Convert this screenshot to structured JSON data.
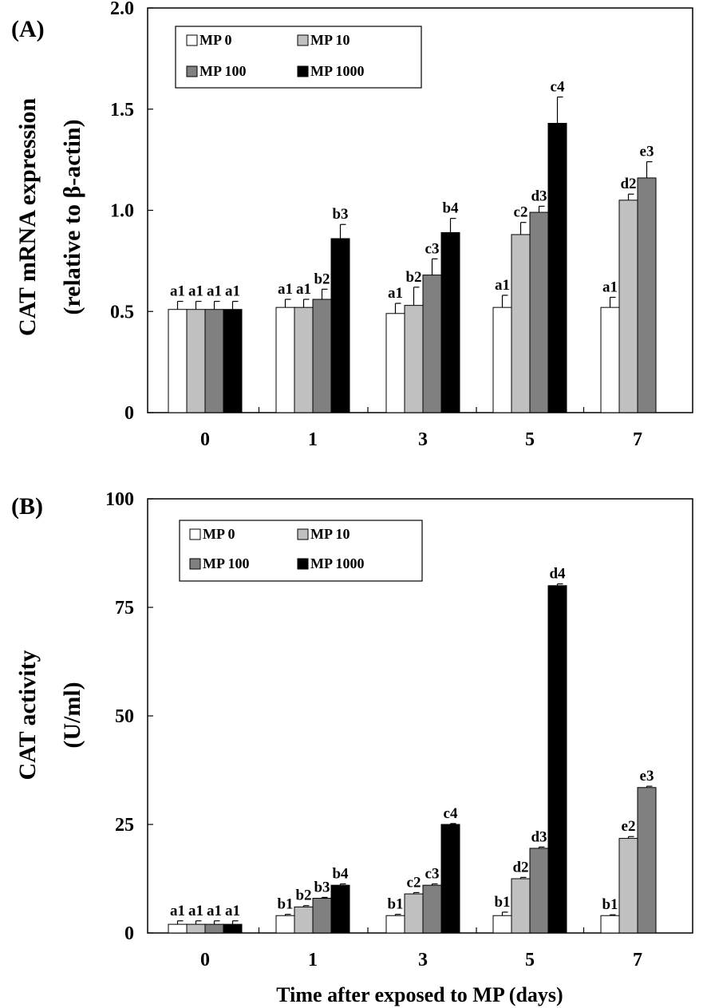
{
  "figure": {
    "xlabel_shared": "Time after exposed to MP (days)"
  },
  "chart_data": [
    {
      "type": "bar",
      "panel_label": "(A)",
      "ylabel_line1": "CAT mRNA expression",
      "ylabel_line2": "(relative to β-actin)",
      "ylim": [
        0,
        2.0
      ],
      "yticks": [
        0,
        0.5,
        1.0,
        1.5,
        2.0
      ],
      "ytick_labels": [
        "0",
        "0.5",
        "1.0",
        "1.5",
        "2.0"
      ],
      "categories": [
        "0",
        "1",
        "3",
        "5",
        "7"
      ],
      "legend_position": "top-left",
      "series": [
        {
          "name": "MP 0",
          "color": "#ffffff",
          "values": [
            0.51,
            0.52,
            0.49,
            0.52,
            0.52
          ],
          "errors": [
            0.04,
            0.04,
            0.05,
            0.06,
            0.05
          ],
          "labels": [
            "a1",
            "a1",
            "a1",
            "a1",
            "a1"
          ]
        },
        {
          "name": "MP 10",
          "color": "#c0c0c0",
          "values": [
            0.51,
            0.52,
            0.53,
            0.88,
            1.05
          ],
          "errors": [
            0.04,
            0.04,
            0.09,
            0.06,
            0.03
          ],
          "labels": [
            "a1",
            "a1",
            "b2",
            "c2",
            "d2"
          ]
        },
        {
          "name": "MP 100",
          "color": "#808080",
          "values": [
            0.51,
            0.56,
            0.68,
            0.99,
            1.16
          ],
          "errors": [
            0.04,
            0.05,
            0.08,
            0.03,
            0.08
          ],
          "labels": [
            "a1",
            "b2",
            "c3",
            "d3",
            "e3"
          ]
        },
        {
          "name": "MP 1000",
          "color": "#000000",
          "values": [
            0.51,
            0.86,
            0.89,
            1.43,
            null
          ],
          "errors": [
            0.04,
            0.07,
            0.07,
            0.13,
            null
          ],
          "labels": [
            "a1",
            "b3",
            "b4",
            "c4",
            null
          ]
        }
      ]
    },
    {
      "type": "bar",
      "panel_label": "(B)",
      "ylabel_line1": "CAT activity",
      "ylabel_line2": "(U/ml)",
      "ylim": [
        0,
        100
      ],
      "yticks": [
        0,
        25,
        50,
        75,
        100
      ],
      "ytick_labels": [
        "0",
        "25",
        "50",
        "75",
        "100"
      ],
      "categories": [
        "0",
        "1",
        "3",
        "5",
        "7"
      ],
      "legend_position": "top-left",
      "series": [
        {
          "name": "MP 0",
          "color": "#ffffff",
          "values": [
            2.0,
            4.0,
            4.0,
            4.0,
            4.0
          ],
          "errors": [
            0.8,
            0.3,
            0.3,
            0.8,
            0.2
          ],
          "labels": [
            "a1",
            "b1",
            "b1",
            "b1",
            "b1"
          ]
        },
        {
          "name": "MP 10",
          "color": "#c0c0c0",
          "values": [
            2.0,
            6.0,
            9.0,
            12.5,
            21.8
          ],
          "errors": [
            0.8,
            0.3,
            0.3,
            0.3,
            0.4
          ],
          "labels": [
            "a1",
            "b2",
            "c2",
            "d2",
            "e2"
          ]
        },
        {
          "name": "MP 100",
          "color": "#808080",
          "values": [
            2.0,
            8.0,
            11.0,
            19.5,
            33.5
          ],
          "errors": [
            0.8,
            0.2,
            0.3,
            0.3,
            0.3
          ],
          "labels": [
            "a1",
            "b3",
            "c3",
            "d3",
            "e3"
          ]
        },
        {
          "name": "MP 1000",
          "color": "#000000",
          "values": [
            2.0,
            11.0,
            25.0,
            80.0,
            null
          ],
          "errors": [
            0.8,
            0.3,
            0.2,
            0.4,
            null
          ],
          "labels": [
            "a1",
            "b4",
            "c4",
            "d4",
            null
          ]
        }
      ]
    }
  ]
}
